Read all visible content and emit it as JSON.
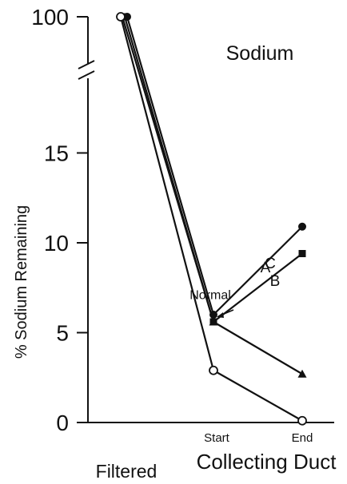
{
  "chart_data": {
    "type": "line",
    "title": "Sodium",
    "ylabel": "% Sodium Remaining",
    "xlabel": "Collecting Duct",
    "categories": [
      "Filtered",
      "Start",
      "End"
    ],
    "ylim": [
      0,
      20
    ],
    "y_axis_break": true,
    "yticks": [
      {
        "value": 0,
        "label": "0"
      },
      {
        "value": 5,
        "label": "5"
      },
      {
        "value": 10,
        "label": "10"
      },
      {
        "value": 15,
        "label": "15"
      },
      {
        "value": 100,
        "label": "100"
      }
    ],
    "series": [
      {
        "name": "A",
        "marker": "filled-circle",
        "values": [
          100,
          6.0,
          10.9
        ]
      },
      {
        "name": "C",
        "marker": "filled-square",
        "values": [
          100,
          5.6,
          9.4
        ]
      },
      {
        "name": "B",
        "marker": "filled-triangle",
        "values": [
          100,
          5.6,
          2.7
        ]
      },
      {
        "name": "Normal",
        "marker": "open-circle",
        "values": [
          100,
          2.9,
          0.1
        ]
      }
    ],
    "grid": false,
    "legend": "inline labels"
  }
}
